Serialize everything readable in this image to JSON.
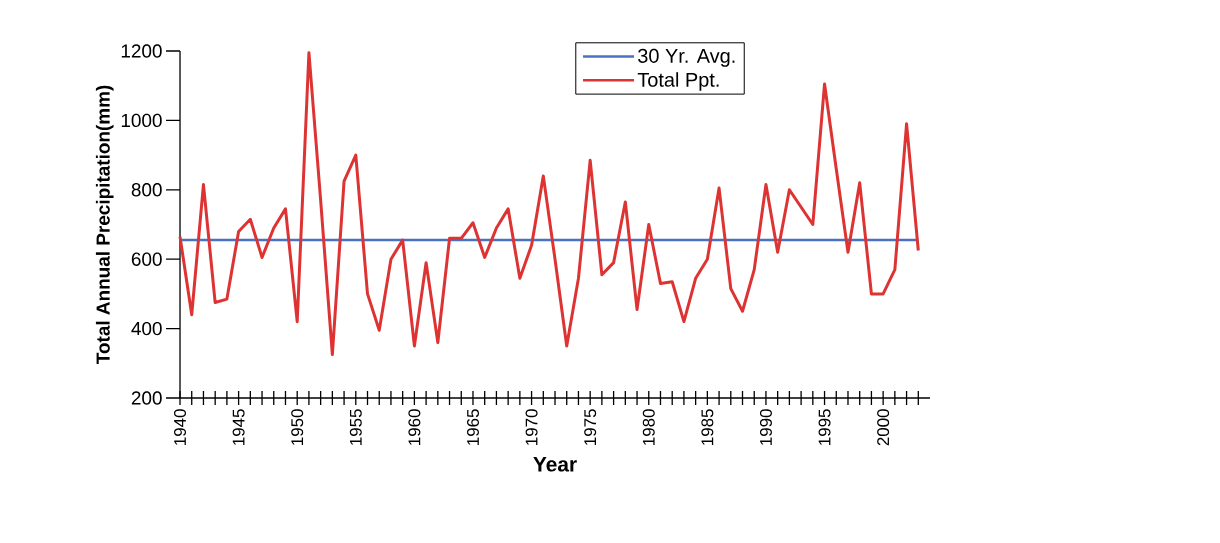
{
  "chart_data": {
    "type": "line",
    "xlabel": "Year",
    "ylabel": "Total Annual Precipitation(mm)",
    "x": [
      1940,
      1941,
      1942,
      1943,
      1944,
      1945,
      1946,
      1947,
      1948,
      1949,
      1950,
      1951,
      1952,
      1953,
      1954,
      1955,
      1956,
      1957,
      1958,
      1959,
      1960,
      1961,
      1962,
      1963,
      1964,
      1965,
      1966,
      1967,
      1968,
      1969,
      1970,
      1971,
      1972,
      1973,
      1974,
      1975,
      1976,
      1977,
      1978,
      1979,
      1980,
      1981,
      1982,
      1983,
      1984,
      1985,
      1986,
      1987,
      1988,
      1989,
      1990,
      1991,
      1992,
      1993,
      1994,
      1995,
      1996,
      1997,
      1998,
      1999,
      2000,
      2001,
      2002,
      2003
    ],
    "series": [
      {
        "name": "Total Ppt.",
        "color": "#dd3333",
        "values": [
          665,
          440,
          815,
          475,
          485,
          680,
          715,
          605,
          690,
          745,
          420,
          1195,
          770,
          325,
          825,
          900,
          500,
          395,
          600,
          655,
          350,
          590,
          360,
          660,
          660,
          705,
          605,
          690,
          745,
          545,
          640,
          840,
          600,
          350,
          545,
          885,
          555,
          590,
          765,
          455,
          700,
          530,
          535,
          420,
          545,
          600,
          805,
          515,
          450,
          570,
          815,
          620,
          800,
          750,
          700,
          1105,
          860,
          620,
          820,
          500,
          500,
          570,
          990,
          625
        ]
      }
    ],
    "ref_lines": [
      {
        "axis": "y",
        "value": 655,
        "label": "30 Yr. Avg.",
        "color": "#4a72c0"
      }
    ],
    "xlim": [
      1940,
      2004
    ],
    "ylim": [
      200,
      1200
    ],
    "xticks": [
      1940,
      {
        "value": 1941,
        "label": null
      },
      {
        "value": 1942,
        "label": null
      },
      {
        "value": 1943,
        "label": null
      },
      {
        "value": 1944,
        "label": null
      },
      1945,
      {
        "value": 1946,
        "label": null
      },
      {
        "value": 1947,
        "label": null
      },
      {
        "value": 1948,
        "label": null
      },
      {
        "value": 1949,
        "label": null
      },
      1950,
      {
        "value": 1951,
        "label": null
      },
      {
        "value": 1952,
        "label": null
      },
      {
        "value": 1953,
        "label": null
      },
      {
        "value": 1954,
        "label": null
      },
      1955,
      {
        "value": 1956,
        "label": null
      },
      {
        "value": 1957,
        "label": null
      },
      {
        "value": 1958,
        "label": null
      },
      {
        "value": 1959,
        "label": null
      },
      1960,
      {
        "value": 1961,
        "label": null
      },
      {
        "value": 1962,
        "label": null
      },
      {
        "value": 1963,
        "label": null
      },
      {
        "value": 1964,
        "label": null
      },
      1965,
      {
        "value": 1966,
        "label": null
      },
      {
        "value": 1967,
        "label": null
      },
      {
        "value": 1968,
        "label": null
      },
      {
        "value": 1969,
        "label": null
      },
      1970,
      {
        "value": 1971,
        "label": null
      },
      {
        "value": 1972,
        "label": null
      },
      {
        "value": 1973,
        "label": null
      },
      {
        "value": 1974,
        "label": null
      },
      1975,
      {
        "value": 1976,
        "label": null
      },
      {
        "value": 1977,
        "label": null
      },
      {
        "value": 1978,
        "label": null
      },
      {
        "value": 1979,
        "label": null
      },
      1980,
      {
        "value": 1981,
        "label": null
      },
      {
        "value": 1982,
        "label": null
      },
      {
        "value": 1983,
        "label": null
      },
      {
        "value": 1984,
        "label": null
      },
      1985,
      {
        "value": 1986,
        "label": null
      },
      {
        "value": 1987,
        "label": null
      },
      {
        "value": 1988,
        "label": null
      },
      {
        "value": 1989,
        "label": null
      },
      1990,
      {
        "value": 1991,
        "label": null
      },
      {
        "value": 1992,
        "label": null
      },
      {
        "value": 1993,
        "label": null
      },
      {
        "value": 1994,
        "label": null
      },
      1995,
      {
        "value": 1996,
        "label": null
      },
      {
        "value": 1997,
        "label": null
      },
      {
        "value": 1998,
        "label": null
      },
      {
        "value": 1999,
        "label": null
      },
      2000,
      {
        "value": 2001,
        "label": null
      },
      {
        "value": 2002,
        "label": null
      },
      {
        "value": 2003,
        "label": null
      }
    ],
    "yticks": [
      200,
      400,
      600,
      800,
      1000,
      1200
    ],
    "grid": false,
    "legend": "top",
    "marker": "none",
    "line_style": "solid"
  }
}
